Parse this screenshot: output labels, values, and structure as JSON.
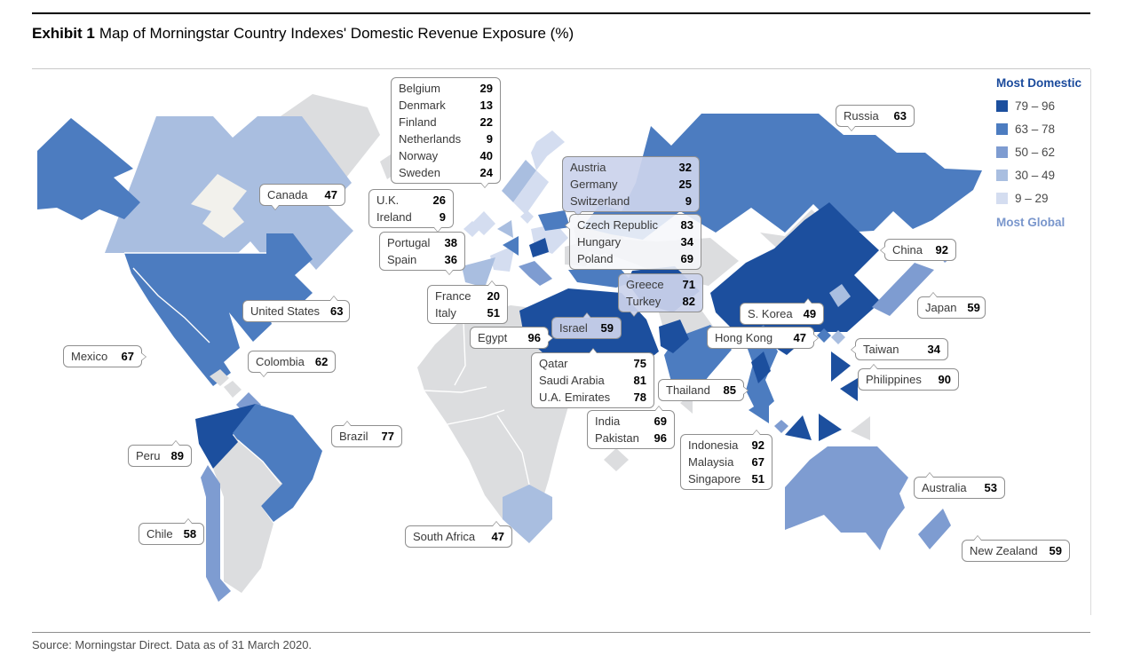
{
  "title": {
    "exhibit": "Exhibit 1",
    "text": "Map of Morningstar Country Indexes' Domestic Revenue Exposure (%)"
  },
  "source": "Source: Morningstar Direct. Data as of 31 March 2020.",
  "legend": {
    "most_domestic": "Most Domestic",
    "most_global": "Most Global",
    "buckets": [
      {
        "label": "79 – 96",
        "min": 79,
        "max": 96,
        "color": "#1C4F9E"
      },
      {
        "label": "63 – 78",
        "min": 63,
        "max": 78,
        "color": "#4C7CC0"
      },
      {
        "label": "50 – 62",
        "min": 50,
        "max": 62,
        "color": "#7E9CD1"
      },
      {
        "label": "30 – 49",
        "min": 30,
        "max": 49,
        "color": "#A9BEE0"
      },
      {
        "label": "9 – 29",
        "min": 9,
        "max": 29,
        "color": "#D4DDF0"
      }
    ]
  },
  "colors": {
    "no_data": "#DCDDDF",
    "ice": "#F2F1EC",
    "border_white": "#FFFFFF",
    "label_border": "#8F8F8F"
  },
  "chart_data": {
    "type": "choropleth_map",
    "title": "Map of Morningstar Country Indexes' Domestic Revenue Exposure (%)",
    "unit": "% of revenue that is domestic",
    "legend_position": "top-right",
    "value_range": [
      9,
      96
    ],
    "countries": [
      {
        "name": "Canada",
        "value": 47
      },
      {
        "name": "United States",
        "value": 63
      },
      {
        "name": "Mexico",
        "value": 67
      },
      {
        "name": "Colombia",
        "value": 62
      },
      {
        "name": "Peru",
        "value": 89
      },
      {
        "name": "Brazil",
        "value": 77
      },
      {
        "name": "Chile",
        "value": 58
      },
      {
        "name": "Belgium",
        "value": 29
      },
      {
        "name": "Denmark",
        "value": 13
      },
      {
        "name": "Finland",
        "value": 22
      },
      {
        "name": "Netherlands",
        "value": 9
      },
      {
        "name": "Norway",
        "value": 40
      },
      {
        "name": "Sweden",
        "value": 24
      },
      {
        "name": "U.K.",
        "value": 26
      },
      {
        "name": "Ireland",
        "value": 9
      },
      {
        "name": "Portugal",
        "value": 38
      },
      {
        "name": "Spain",
        "value": 36
      },
      {
        "name": "France",
        "value": 20
      },
      {
        "name": "Italy",
        "value": 51
      },
      {
        "name": "Austria",
        "value": 32
      },
      {
        "name": "Germany",
        "value": 25
      },
      {
        "name": "Switzerland",
        "value": 9
      },
      {
        "name": "Czech Republic",
        "value": 83
      },
      {
        "name": "Hungary",
        "value": 34
      },
      {
        "name": "Poland",
        "value": 69
      },
      {
        "name": "Greece",
        "value": 71
      },
      {
        "name": "Turkey",
        "value": 82
      },
      {
        "name": "Israel",
        "value": 59
      },
      {
        "name": "Egypt",
        "value": 96
      },
      {
        "name": "Qatar",
        "value": 75
      },
      {
        "name": "Saudi Arabia",
        "value": 81
      },
      {
        "name": "U.A. Emirates",
        "value": 78
      },
      {
        "name": "Russia",
        "value": 63
      },
      {
        "name": "India",
        "value": 69
      },
      {
        "name": "Pakistan",
        "value": 96
      },
      {
        "name": "China",
        "value": 92
      },
      {
        "name": "Japan",
        "value": 59
      },
      {
        "name": "S. Korea",
        "value": 49
      },
      {
        "name": "Hong Kong",
        "value": 47
      },
      {
        "name": "Taiwan",
        "value": 34
      },
      {
        "name": "Philippines",
        "value": 90
      },
      {
        "name": "Thailand",
        "value": 85
      },
      {
        "name": "Indonesia",
        "value": 92
      },
      {
        "name": "Malaysia",
        "value": 67
      },
      {
        "name": "Singapore",
        "value": 51
      },
      {
        "name": "Australia",
        "value": 53
      },
      {
        "name": "New Zealand",
        "value": 59
      },
      {
        "name": "South Africa",
        "value": 47
      }
    ],
    "labels": [
      {
        "id": "nordics",
        "style": "plain",
        "countries": [
          "Belgium",
          "Denmark",
          "Finland",
          "Netherlands",
          "Norway",
          "Sweden"
        ]
      },
      {
        "id": "uk_ireland",
        "style": "plain",
        "countries": [
          "U.K.",
          "Ireland"
        ]
      },
      {
        "id": "portugal_spain",
        "style": "plain",
        "countries": [
          "Portugal",
          "Spain"
        ]
      },
      {
        "id": "france_italy",
        "style": "plain",
        "countries": [
          "France",
          "Italy"
        ]
      },
      {
        "id": "dach",
        "style": "tint",
        "countries": [
          "Austria",
          "Germany",
          "Switzerland"
        ]
      },
      {
        "id": "cee",
        "style": "glass",
        "countries": [
          "Czech Republic",
          "Hungary",
          "Poland"
        ]
      },
      {
        "id": "greece_turkey",
        "style": "tint",
        "countries": [
          "Greece",
          "Turkey"
        ]
      },
      {
        "id": "israel",
        "style": "tint",
        "countries": [
          "Israel"
        ]
      },
      {
        "id": "egypt",
        "style": "plain",
        "countries": [
          "Egypt"
        ]
      },
      {
        "id": "mideast",
        "style": "plain",
        "countries": [
          "Qatar",
          "Saudi Arabia",
          "U.A. Emirates"
        ]
      },
      {
        "id": "india_pakistan",
        "style": "plain",
        "countries": [
          "India",
          "Pakistan"
        ]
      },
      {
        "id": "sea",
        "style": "plain",
        "countries": [
          "Indonesia",
          "Malaysia",
          "Singapore"
        ]
      },
      {
        "id": "thailand",
        "style": "plain",
        "countries": [
          "Thailand"
        ]
      },
      {
        "id": "canada",
        "style": "plain",
        "countries": [
          "Canada"
        ]
      },
      {
        "id": "united_states",
        "style": "plain",
        "countries": [
          "United States"
        ]
      },
      {
        "id": "mexico",
        "style": "plain",
        "countries": [
          "Mexico"
        ]
      },
      {
        "id": "colombia",
        "style": "plain",
        "countries": [
          "Colombia"
        ]
      },
      {
        "id": "brazil",
        "style": "plain",
        "countries": [
          "Brazil"
        ]
      },
      {
        "id": "peru",
        "style": "plain",
        "countries": [
          "Peru"
        ]
      },
      {
        "id": "chile",
        "style": "plain",
        "countries": [
          "Chile"
        ]
      },
      {
        "id": "south_africa",
        "style": "plain",
        "countries": [
          "South Africa"
        ]
      },
      {
        "id": "russia",
        "style": "plain",
        "countries": [
          "Russia"
        ]
      },
      {
        "id": "china",
        "style": "plain",
        "countries": [
          "China"
        ]
      },
      {
        "id": "japan",
        "style": "plain",
        "countries": [
          "Japan"
        ]
      },
      {
        "id": "s_korea",
        "style": "plain",
        "countries": [
          "S. Korea"
        ]
      },
      {
        "id": "hong_kong",
        "style": "plain",
        "countries": [
          "Hong Kong"
        ]
      },
      {
        "id": "taiwan",
        "style": "plain",
        "countries": [
          "Taiwan"
        ]
      },
      {
        "id": "philippines",
        "style": "plain",
        "countries": [
          "Philippines"
        ]
      },
      {
        "id": "australia",
        "style": "plain",
        "countries": [
          "Australia"
        ]
      },
      {
        "id": "new_zealand",
        "style": "plain",
        "countries": [
          "New Zealand"
        ]
      }
    ]
  }
}
